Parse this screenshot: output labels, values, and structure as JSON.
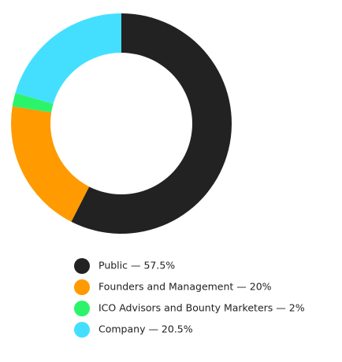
{
  "chart_data": {
    "type": "donut",
    "categories": [
      "Public — 57.5%",
      "Founders and Management — 20%",
      "ICO Advisors and Bounty Marketers — 2%",
      "Company — 20.5%"
    ],
    "values": [
      57.5,
      20,
      2,
      20.5
    ],
    "colors": [
      "#222222",
      "#ff9a00",
      "#2cf46a",
      "#44dfff"
    ]
  }
}
